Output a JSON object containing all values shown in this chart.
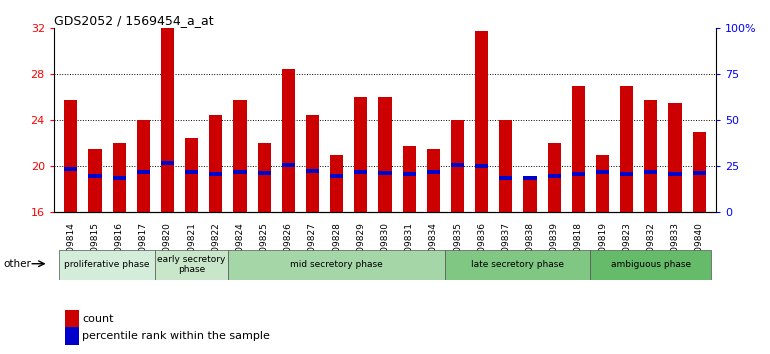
{
  "title": "GDS2052 / 1569454_a_at",
  "samples": [
    "GSM109814",
    "GSM109815",
    "GSM109816",
    "GSM109817",
    "GSM109820",
    "GSM109821",
    "GSM109822",
    "GSM109824",
    "GSM109825",
    "GSM109826",
    "GSM109827",
    "GSM109828",
    "GSM109829",
    "GSM109830",
    "GSM109831",
    "GSM109834",
    "GSM109835",
    "GSM109836",
    "GSM109837",
    "GSM109838",
    "GSM109839",
    "GSM109818",
    "GSM109819",
    "GSM109823",
    "GSM109832",
    "GSM109833",
    "GSM109840"
  ],
  "count_values": [
    25.8,
    21.5,
    22.0,
    24.0,
    32.0,
    22.5,
    24.5,
    25.8,
    22.0,
    28.5,
    24.5,
    21.0,
    26.0,
    26.0,
    21.8,
    21.5,
    24.0,
    31.8,
    24.0,
    18.8,
    22.0,
    27.0,
    21.0,
    27.0,
    25.8,
    25.5,
    23.0
  ],
  "percentile_values": [
    19.8,
    19.2,
    19.0,
    19.5,
    20.3,
    19.5,
    19.3,
    19.5,
    19.4,
    20.1,
    19.6,
    19.2,
    19.5,
    19.4,
    19.3,
    19.5,
    20.1,
    20.0,
    19.0,
    19.0,
    19.2,
    19.3,
    19.5,
    19.3,
    19.5,
    19.3,
    19.4
  ],
  "bar_color": "#cc0000",
  "percentile_color": "#0000cc",
  "ylim_left": [
    16,
    32
  ],
  "ylim_right": [
    0,
    100
  ],
  "yticks_left": [
    16,
    20,
    24,
    28,
    32
  ],
  "yticks_right": [
    0,
    25,
    50,
    75,
    100
  ],
  "ytick_labels_right": [
    "0",
    "25",
    "50",
    "75",
    "100%"
  ],
  "phase_info": [
    {
      "start": 0,
      "end": 4,
      "color": "#d4edda",
      "label": "proliferative phase"
    },
    {
      "start": 4,
      "end": 7,
      "color": "#c8e6c9",
      "label": "early secretory\nphase"
    },
    {
      "start": 7,
      "end": 16,
      "color": "#a5d6a7",
      "label": "mid secretory phase"
    },
    {
      "start": 16,
      "end": 22,
      "color": "#81c784",
      "label": "late secretory phase"
    },
    {
      "start": 22,
      "end": 27,
      "color": "#66bb6a",
      "label": "ambiguous phase"
    }
  ],
  "other_label": "other",
  "legend_count_label": "count",
  "legend_percentile_label": "percentile rank within the sample",
  "background_color": "#ffffff",
  "bar_width": 0.55,
  "grid_color": "#000000",
  "grid_linestyle": "dotted",
  "grid_linewidth": 0.7
}
